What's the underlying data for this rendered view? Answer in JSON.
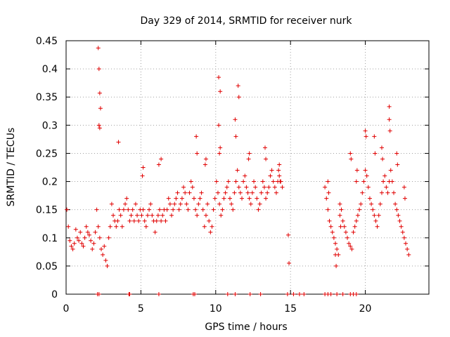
{
  "chart_data": {
    "type": "scatter",
    "title": "Day 329 of 2014, SRMTID for receiver nurk",
    "xlabel": "GPS time / hours",
    "ylabel": "SRMTID / TECUs",
    "xlim": [
      0,
      24.25
    ],
    "ylim": [
      0,
      0.45
    ],
    "xticks": [
      0,
      5,
      10,
      15,
      20
    ],
    "xtick_labels": [
      "0",
      "5",
      "10",
      "15",
      "20"
    ],
    "yticks": [
      0,
      0.05,
      0.1,
      0.15,
      0.2,
      0.25,
      0.3,
      0.35,
      0.4,
      0.45
    ],
    "ytick_labels": [
      "0",
      "0.05",
      "0.1",
      "0.15",
      "0.2",
      "0.25",
      "0.3",
      "0.35",
      "0.4",
      "0.45"
    ],
    "grid": true,
    "marker": "plus",
    "color": "#e00000",
    "series": [
      {
        "name": "SRMTID",
        "x": [
          0.05,
          0.15,
          0.25,
          0.35,
          0.45,
          0.55,
          0.65,
          0.75,
          0.85,
          0.95,
          1.05,
          1.15,
          1.25,
          1.35,
          1.45,
          1.55,
          1.65,
          1.75,
          1.85,
          1.95,
          2.05,
          2.15,
          2.25,
          2.35,
          2.45,
          2.55,
          2.65,
          2.75,
          2.85,
          2.95,
          3.05,
          3.15,
          3.25,
          3.35,
          3.45,
          3.55,
          3.65,
          3.75,
          3.85,
          3.95,
          4.05,
          4.15,
          4.25,
          4.35,
          4.45,
          4.55,
          4.65,
          4.75,
          4.85,
          4.95,
          5.05,
          5.15,
          5.25,
          5.35,
          5.45,
          5.55,
          5.65,
          5.75,
          5.85,
          5.95,
          6.05,
          6.15,
          6.25,
          6.35,
          6.45,
          6.55,
          6.65,
          6.75,
          6.85,
          6.95,
          7.05,
          7.15,
          7.25,
          7.35,
          7.45,
          7.55,
          7.65,
          7.75,
          7.85,
          7.95,
          8.05,
          8.15,
          8.25,
          8.35,
          8.45,
          8.55,
          8.65,
          8.75,
          8.85,
          8.95,
          9.05,
          9.15,
          9.25,
          9.35,
          9.45,
          9.55,
          9.65,
          9.75,
          9.85,
          9.95,
          10.05,
          10.15,
          10.25,
          10.35,
          10.45,
          10.55,
          10.65,
          10.75,
          10.85,
          10.95,
          11.05,
          11.15,
          11.25,
          11.35,
          11.45,
          11.55,
          11.65,
          11.75,
          11.85,
          11.95,
          12.05,
          12.15,
          12.25,
          12.35,
          12.45,
          12.55,
          12.65,
          12.75,
          12.85,
          12.95,
          13.05,
          13.15,
          13.25,
          13.35,
          13.45,
          13.55,
          13.65,
          13.75,
          13.85,
          13.95,
          14.05,
          14.15,
          14.25,
          14.35,
          14.45,
          14.85,
          14.9,
          17.3,
          17.4,
          17.5,
          17.6,
          17.7,
          17.8,
          17.9,
          18.0,
          18.1,
          18.2,
          18.3,
          18.4,
          18.5,
          18.6,
          18.7,
          18.8,
          18.9,
          19.0,
          19.1,
          19.2,
          19.3,
          19.4,
          19.5,
          19.6,
          19.7,
          19.8,
          19.9,
          20.0,
          20.1,
          20.2,
          20.3,
          20.4,
          20.5,
          20.6,
          20.7,
          20.8,
          20.9,
          21.0,
          21.1,
          21.2,
          21.3,
          21.4,
          21.5,
          21.6,
          21.7,
          21.8,
          21.9,
          22.0,
          22.1,
          22.2,
          22.3,
          22.4,
          22.5,
          22.6,
          22.7,
          22.8,
          22.9,
          2.15,
          2.2,
          2.25,
          2.3,
          10.2,
          10.3,
          11.5,
          11.55,
          21.6,
          2.2,
          2.25,
          3.5,
          5.1,
          5.15,
          6.2,
          6.35,
          8.7,
          8.75,
          9.3,
          9.35,
          10.2,
          10.25,
          10.3,
          11.3,
          11.35,
          12.2,
          12.25,
          13.3,
          13.35,
          14.2,
          14.25,
          14.3,
          17.5,
          17.55,
          18.0,
          18.05,
          18.3,
          18.35,
          19.0,
          19.05,
          19.4,
          19.45,
          20.0,
          20.05,
          20.6,
          20.65,
          21.1,
          21.15,
          21.6,
          21.65,
          22.1,
          22.15,
          22.6,
          22.65,
          2.1,
          2.2,
          4.2,
          4.25,
          6.2,
          8.5,
          8.6,
          10.8,
          11.3,
          12.3,
          13.0,
          14.8,
          15.2,
          15.6,
          15.9,
          17.3,
          17.5,
          17.7,
          18.1,
          18.5,
          19.0,
          19.2,
          19.4
        ],
        "y": [
          0.15,
          0.12,
          0.095,
          0.085,
          0.08,
          0.09,
          0.115,
          0.1,
          0.095,
          0.11,
          0.09,
          0.085,
          0.1,
          0.12,
          0.11,
          0.105,
          0.095,
          0.08,
          0.09,
          0.11,
          0.15,
          0.12,
          0.1,
          0.08,
          0.07,
          0.085,
          0.06,
          0.05,
          0.1,
          0.12,
          0.16,
          0.14,
          0.13,
          0.12,
          0.13,
          0.15,
          0.14,
          0.12,
          0.15,
          0.16,
          0.17,
          0.15,
          0.13,
          0.14,
          0.15,
          0.13,
          0.16,
          0.14,
          0.13,
          0.15,
          0.14,
          0.15,
          0.13,
          0.12,
          0.14,
          0.15,
          0.16,
          0.14,
          0.13,
          0.11,
          0.13,
          0.14,
          0.15,
          0.13,
          0.14,
          0.15,
          0.13,
          0.15,
          0.17,
          0.16,
          0.14,
          0.15,
          0.16,
          0.17,
          0.18,
          0.15,
          0.16,
          0.17,
          0.19,
          0.18,
          0.16,
          0.15,
          0.18,
          0.2,
          0.19,
          0.17,
          0.15,
          0.14,
          0.16,
          0.17,
          0.18,
          0.15,
          0.12,
          0.14,
          0.16,
          0.13,
          0.11,
          0.12,
          0.15,
          0.17,
          0.2,
          0.18,
          0.16,
          0.14,
          0.15,
          0.17,
          0.18,
          0.19,
          0.2,
          0.17,
          0.16,
          0.15,
          0.18,
          0.2,
          0.22,
          0.19,
          0.18,
          0.17,
          0.2,
          0.21,
          0.19,
          0.18,
          0.17,
          0.16,
          0.18,
          0.2,
          0.19,
          0.17,
          0.15,
          0.16,
          0.18,
          0.2,
          0.19,
          0.17,
          0.18,
          0.19,
          0.21,
          0.22,
          0.2,
          0.19,
          0.18,
          0.2,
          0.21,
          0.2,
          0.19,
          0.105,
          0.055,
          0.19,
          0.17,
          0.15,
          0.13,
          0.12,
          0.11,
          0.1,
          0.09,
          0.08,
          0.07,
          0.16,
          0.15,
          0.13,
          0.12,
          0.11,
          0.1,
          0.09,
          0.085,
          0.08,
          0.11,
          0.12,
          0.13,
          0.14,
          0.15,
          0.16,
          0.18,
          0.2,
          0.22,
          0.21,
          0.19,
          0.17,
          0.16,
          0.15,
          0.14,
          0.13,
          0.12,
          0.14,
          0.16,
          0.18,
          0.2,
          0.21,
          0.19,
          0.18,
          0.2,
          0.22,
          0.2,
          0.18,
          0.16,
          0.15,
          0.14,
          0.13,
          0.12,
          0.11,
          0.1,
          0.09,
          0.08,
          0.07,
          0.437,
          0.4,
          0.357,
          0.33,
          0.385,
          0.36,
          0.37,
          0.35,
          0.333,
          0.3,
          0.295,
          0.27,
          0.21,
          0.225,
          0.23,
          0.24,
          0.28,
          0.25,
          0.23,
          0.24,
          0.3,
          0.25,
          0.26,
          0.31,
          0.28,
          0.24,
          0.25,
          0.26,
          0.24,
          0.22,
          0.23,
          0.2,
          0.2,
          0.18,
          0.07,
          0.05,
          0.14,
          0.12,
          0.25,
          0.24,
          0.2,
          0.22,
          0.29,
          0.28,
          0.28,
          0.25,
          0.26,
          0.24,
          0.31,
          0.29,
          0.25,
          0.23,
          0.19,
          0.17,
          0,
          0,
          0,
          0,
          0,
          0,
          0,
          0,
          0,
          0,
          0,
          0,
          0,
          0,
          0,
          0,
          0,
          0,
          0,
          0,
          0,
          0,
          0
        ],
        "label": "SRMTID"
      }
    ]
  }
}
